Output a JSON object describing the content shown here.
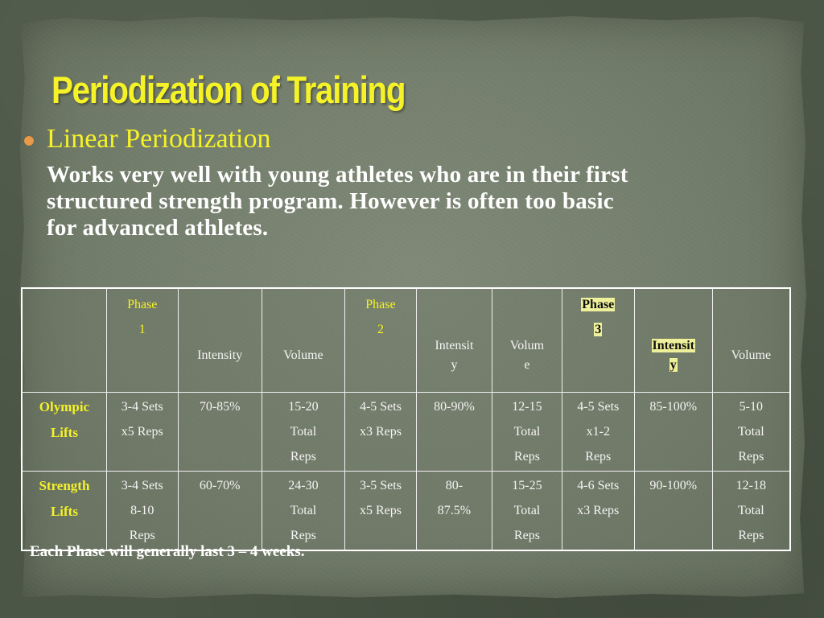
{
  "title": "Periodization of Training",
  "bullet": "Linear Periodization",
  "body_lines": [
    "Works very well with young athletes who are in their first",
    "structured strength program.   However is often too basic",
    "for advanced athletes."
  ],
  "table": {
    "header": [
      "",
      [
        "Phase",
        "1"
      ],
      "Intensity",
      "Volume",
      [
        "Phase",
        "2"
      ],
      [
        "Intensit",
        "y"
      ],
      [
        "Volum",
        "e"
      ],
      [
        "Phase",
        "3"
      ],
      [
        "Intensit",
        "y"
      ],
      "Volume"
    ],
    "rows": [
      {
        "label": [
          "Olympic",
          "Lifts"
        ],
        "cells": [
          [
            "3-4 Sets",
            "x5 Reps"
          ],
          [
            "70-85%"
          ],
          [
            "15-20",
            "Total",
            "Reps"
          ],
          [
            "4-5 Sets",
            "x3 Reps"
          ],
          [
            "80-90%"
          ],
          [
            "12-15",
            "Total",
            "Reps"
          ],
          [
            "4-5 Sets",
            "x1-2",
            "Reps"
          ],
          [
            "85-100%"
          ],
          [
            "5-10",
            "Total",
            "Reps"
          ]
        ]
      },
      {
        "label": [
          "Strength",
          "Lifts"
        ],
        "cells": [
          [
            "3-4 Sets",
            "8-10",
            "Reps"
          ],
          [
            "60-70%"
          ],
          [
            "24-30",
            "Total",
            "Reps"
          ],
          [
            "3-5 Sets",
            "x5 Reps"
          ],
          [
            "80-",
            "87.5%"
          ],
          [
            "15-25",
            "Total",
            "Reps"
          ],
          [
            "4-6 Sets",
            "x3 Reps"
          ],
          [
            "90-100%"
          ],
          [
            "12-18",
            "Total",
            "Reps"
          ]
        ]
      }
    ]
  },
  "footnote": "Each Phase will generally last 3 – 4 weeks.",
  "colors": {
    "title": "#f5f227",
    "bullet_dot": "#e89a48",
    "highlight": "#eef09a",
    "background": "#4b5646",
    "paper": "#7f8977"
  }
}
